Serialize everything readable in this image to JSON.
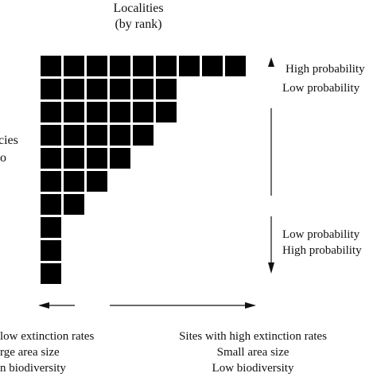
{
  "header": {
    "title_line1": "Localities",
    "title_line2": "(by rank)"
  },
  "left_label": {
    "line1": "cies",
    "line2": "o"
  },
  "right_labels": {
    "top_line1": "High probability",
    "top_line2": "Low probability",
    "bottom_line1": "Low probability",
    "bottom_line2": "High probability"
  },
  "bottom_labels": {
    "left_line1": "low extinction  rates",
    "left_line2": "rge area size",
    "left_line3": "n biodiversity",
    "right_line1": "Sites with high extinction rates",
    "right_line2": "Small area size",
    "right_line3": "Low biodiversity"
  },
  "matrix": {
    "row_lengths": [
      9,
      6,
      6,
      5,
      4,
      3,
      2,
      1,
      1,
      1
    ],
    "cell_color": "#000000"
  }
}
